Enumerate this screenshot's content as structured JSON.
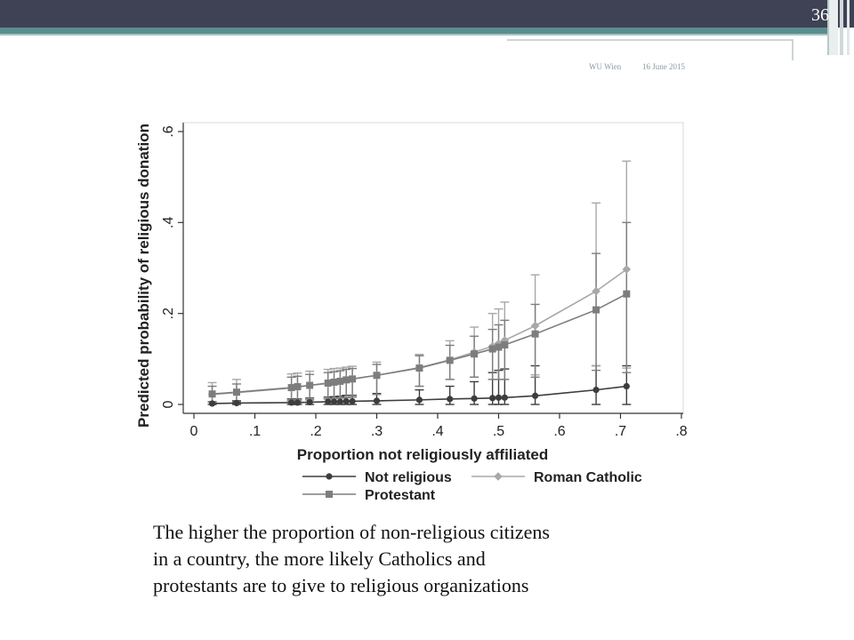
{
  "slide": {
    "number": "36",
    "org": "WU Wien",
    "date": "16 June 2015"
  },
  "caption": {
    "line1": "The higher the proportion of non-religious citizens",
    "line2": "in a country, the more likely Catholics and",
    "line3": "protestants are to give to religious organizations"
  },
  "chart_data": {
    "type": "line",
    "xlabel": "Proportion not religiously affiliated",
    "ylabel": "Predicted probability of religious donation",
    "xlim": [
      0,
      0.8
    ],
    "ylim": [
      0,
      0.6
    ],
    "xticks": [
      "0",
      ".1",
      ".2",
      ".3",
      ".4",
      ".5",
      ".6",
      ".7",
      ".8"
    ],
    "yticks": [
      "0",
      ".2",
      ".4",
      ".6"
    ],
    "grid": false,
    "legend_position": "bottom",
    "x": [
      0.03,
      0.07,
      0.16,
      0.17,
      0.19,
      0.22,
      0.23,
      0.24,
      0.25,
      0.26,
      0.3,
      0.37,
      0.42,
      0.46,
      0.49,
      0.5,
      0.51,
      0.56,
      0.66,
      0.71
    ],
    "series": [
      {
        "name": "Not religious",
        "marker": "circle",
        "color": "#3d3d3d",
        "values": [
          0.002,
          0.003,
          0.004,
          0.004,
          0.005,
          0.006,
          0.006,
          0.006,
          0.007,
          0.007,
          0.008,
          0.01,
          0.012,
          0.013,
          0.014,
          0.015,
          0.015,
          0.019,
          0.032,
          0.04
        ],
        "ci_low": [
          0.0,
          0.0,
          0.0,
          0.0,
          0.0,
          0.0,
          0.0,
          0.0,
          0.0,
          0.0,
          0.0,
          0.0,
          0.0,
          0.0,
          0.0,
          0.0,
          0.0,
          0.0,
          0.0,
          0.0
        ],
        "ci_high": [
          0.006,
          0.008,
          0.012,
          0.012,
          0.014,
          0.016,
          0.017,
          0.018,
          0.02,
          0.02,
          0.024,
          0.032,
          0.04,
          0.05,
          0.07,
          0.075,
          0.078,
          0.085,
          0.085,
          0.085
        ]
      },
      {
        "name": "Roman Catholic",
        "marker": "diamond",
        "color": "#a8a8a8",
        "values": [
          0.022,
          0.026,
          0.036,
          0.038,
          0.042,
          0.046,
          0.049,
          0.051,
          0.054,
          0.056,
          0.064,
          0.081,
          0.098,
          0.115,
          0.128,
          0.134,
          0.141,
          0.173,
          0.249,
          0.297
        ],
        "ci_low": [
          0.005,
          0.005,
          0.008,
          0.008,
          0.01,
          0.012,
          0.013,
          0.014,
          0.015,
          0.016,
          0.022,
          0.04,
          0.055,
          0.06,
          0.055,
          0.055,
          0.055,
          0.065,
          0.085,
          0.08
        ],
        "ci_high": [
          0.048,
          0.055,
          0.067,
          0.069,
          0.073,
          0.077,
          0.079,
          0.08,
          0.082,
          0.084,
          0.093,
          0.11,
          0.14,
          0.17,
          0.2,
          0.21,
          0.225,
          0.285,
          0.443,
          0.535
        ]
      },
      {
        "name": "Protestant",
        "marker": "square",
        "color": "#7d7d7d",
        "values": [
          0.023,
          0.027,
          0.037,
          0.039,
          0.042,
          0.047,
          0.049,
          0.051,
          0.054,
          0.056,
          0.064,
          0.08,
          0.097,
          0.111,
          0.122,
          0.126,
          0.131,
          0.155,
          0.208,
          0.243
        ],
        "ci_low": [
          0.005,
          0.005,
          0.008,
          0.008,
          0.01,
          0.012,
          0.013,
          0.014,
          0.015,
          0.016,
          0.022,
          0.04,
          0.055,
          0.06,
          0.055,
          0.055,
          0.055,
          0.06,
          0.075,
          0.07
        ],
        "ci_high": [
          0.04,
          0.045,
          0.06,
          0.062,
          0.066,
          0.07,
          0.072,
          0.074,
          0.077,
          0.079,
          0.088,
          0.107,
          0.13,
          0.15,
          0.165,
          0.175,
          0.185,
          0.22,
          0.332,
          0.4
        ]
      }
    ]
  }
}
